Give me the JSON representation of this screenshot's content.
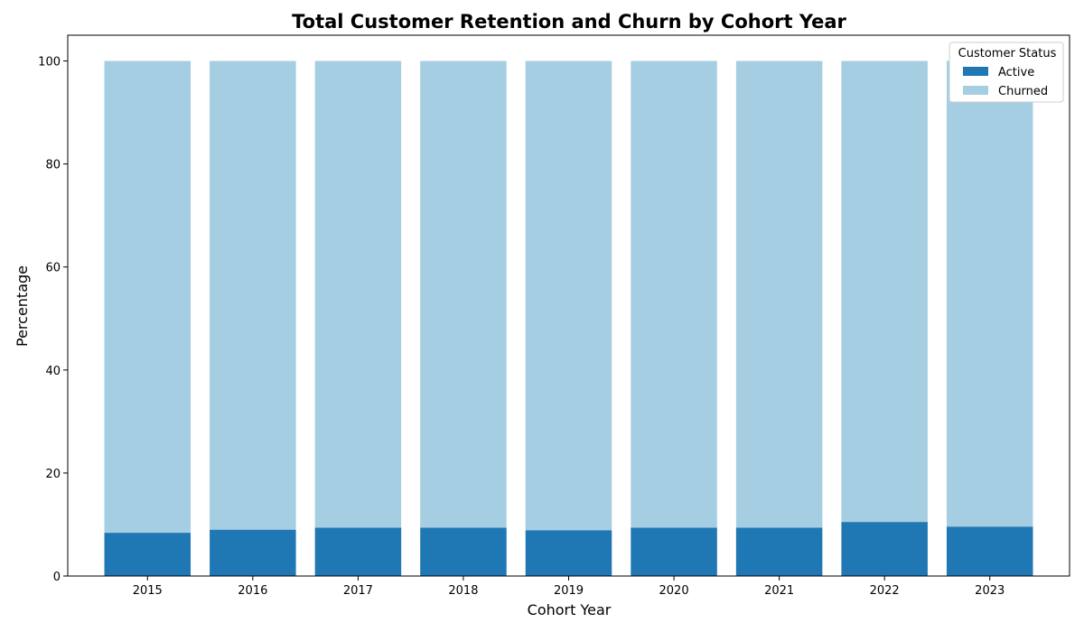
{
  "chart_data": {
    "type": "bar",
    "stacked": true,
    "title": "Total Customer Retention and Churn by Cohort Year",
    "xlabel": "Cohort Year",
    "ylabel": "Percentage",
    "categories": [
      "2015",
      "2016",
      "2017",
      "2018",
      "2019",
      "2020",
      "2021",
      "2022",
      "2023"
    ],
    "series": [
      {
        "name": "Active",
        "color": "#1f77b4",
        "values": [
          8.4,
          9.0,
          9.4,
          9.4,
          8.9,
          9.4,
          9.4,
          10.5,
          9.6
        ]
      },
      {
        "name": "Churned",
        "color": "#a6cee3",
        "values": [
          91.6,
          91.0,
          90.6,
          90.6,
          91.1,
          90.6,
          90.6,
          89.5,
          90.4
        ]
      }
    ],
    "ylim": [
      0,
      105
    ],
    "yticks": [
      0,
      20,
      40,
      60,
      80,
      100
    ],
    "grid": false,
    "legend": {
      "title": "Customer Status",
      "placement": "top-right"
    }
  }
}
